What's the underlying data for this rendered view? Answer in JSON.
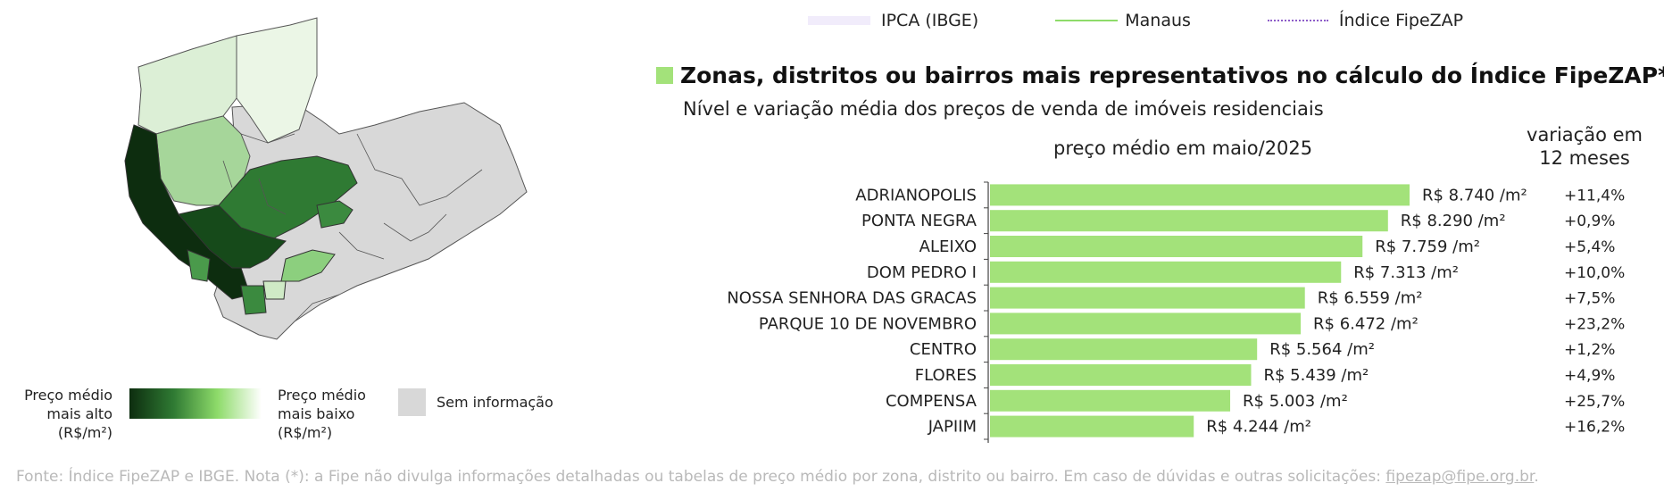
{
  "legend": {
    "ipca": "IPCA (IBGE)",
    "manaus": "Manaus",
    "fipezap": "Índice FipeZAP"
  },
  "title": "Zonas, distritos ou bairros mais representativos no cálculo do Índice FipeZAP*",
  "subtitle": "Nível e variação média dos preços de venda de imóveis residenciais",
  "col_price": "preço médio em maio/2025",
  "col_var_line1": "variação em",
  "col_var_line2": "12 meses",
  "map_legend": {
    "high_l1": "Preço médio",
    "high_l2": "mais alto",
    "high_l3": "(R$/m²)",
    "low_l1": "Preço médio",
    "low_l2": "mais baixo",
    "low_l3": "(R$/m²)",
    "no_data": "Sem informação"
  },
  "footer": {
    "text": "Fonte: Índice FipeZAP e IBGE. Nota (*): a Fipe não divulga informações detalhadas ou tabelas de preço médio por zona, distrito ou bairro. Em caso de dúvidas e outras solicitações: ",
    "email": "fipezap@fipe.org.br",
    "end": "."
  },
  "colors": {
    "bar": "#a3e27a",
    "map_dark": "#0d2d0f",
    "map_mid": "#2f7a33",
    "map_light": "#a6d69a",
    "map_pale": "#dcefd6",
    "map_gray": "#d8d8d8"
  },
  "chart_data": {
    "type": "bar",
    "orientation": "horizontal",
    "categories": [
      "ADRIANOPOLIS",
      "PONTA NEGRA",
      "ALEIXO",
      "DOM PEDRO I",
      "NOSSA SENHORA DAS GRACAS",
      "PARQUE 10 DE NOVEMBRO",
      "CENTRO",
      "FLORES",
      "COMPENSA",
      "JAPIIM"
    ],
    "values": [
      8740,
      8290,
      7759,
      7313,
      6559,
      6472,
      5564,
      5439,
      5003,
      4244
    ],
    "value_labels": [
      "R$ 8.740 /m²",
      "R$ 8.290 /m²",
      "R$ 7.759 /m²",
      "R$ 7.313 /m²",
      "R$ 6.559 /m²",
      "R$ 6.472 /m²",
      "R$ 5.564 /m²",
      "R$ 5.439 /m²",
      "R$ 5.003 /m²",
      "R$ 4.244 /m²"
    ],
    "variation_12m": [
      "+11,4%",
      "+0,9%",
      "+5,4%",
      "+10,0%",
      "+7,5%",
      "+23,2%",
      "+1,2%",
      "+4,9%",
      "+25,7%",
      "+16,2%"
    ],
    "xlim": [
      0,
      8740
    ]
  }
}
